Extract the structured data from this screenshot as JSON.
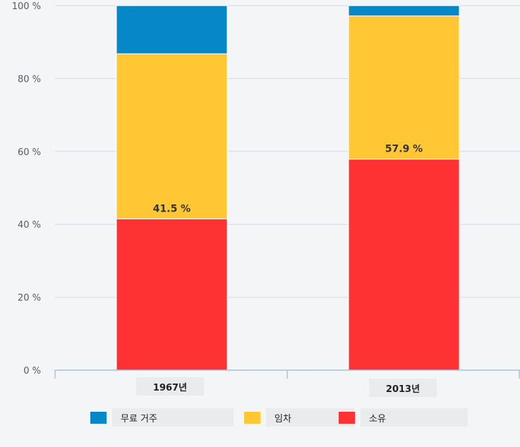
{
  "chart_data": {
    "type": "bar",
    "stacked": true,
    "categories": [
      "1967년",
      "2013년"
    ],
    "series": [
      {
        "name": "소유",
        "values": [
          41.5,
          57.9
        ],
        "color": "#fe3233"
      },
      {
        "name": "임차",
        "values": [
          45.3,
          39.3
        ],
        "color": "#ffc733"
      },
      {
        "name": "무료 거주",
        "values": [
          13.2,
          2.8
        ],
        "color": "#0587c8"
      }
    ],
    "data_labels": [
      "41.5 %",
      "57.9 %"
    ],
    "y_ticks": [
      "0 %",
      "20 %",
      "40 %",
      "60 %",
      "80 %",
      "100 %"
    ],
    "ylim": [
      0,
      100
    ],
    "grid": true,
    "legend_position": "bottom",
    "legend_order": [
      "무료 거주",
      "임차",
      "소유"
    ]
  },
  "colors": {
    "background": "#f4f5f7",
    "gridline": "#d7dce3",
    "axis": "#a9c3dc",
    "category_box": "#eaebed"
  }
}
